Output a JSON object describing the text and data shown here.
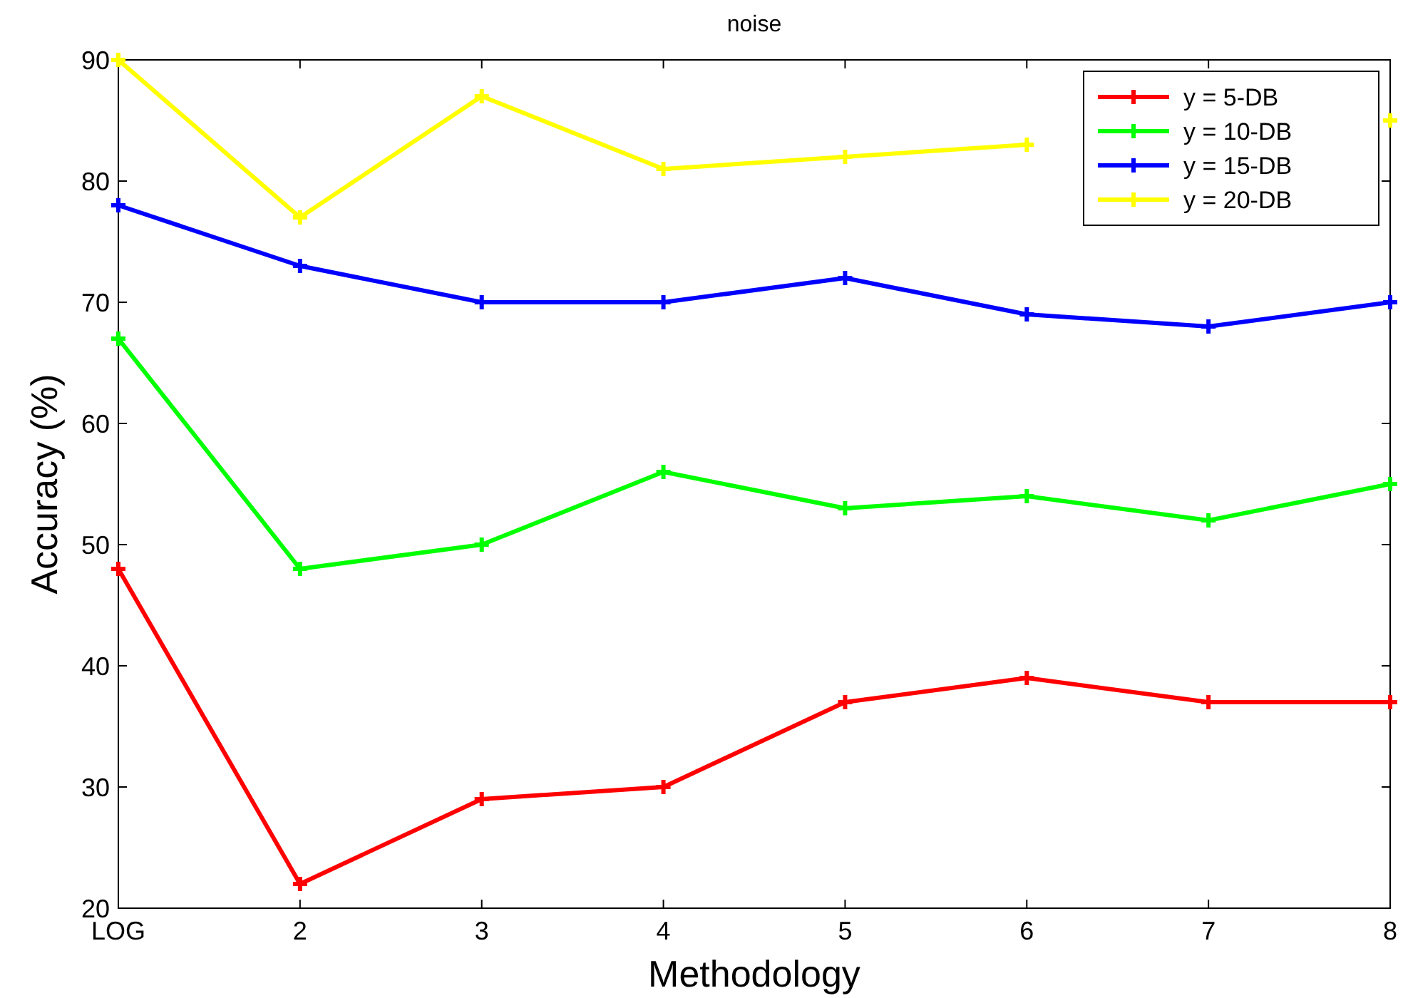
{
  "chart_data": {
    "type": "line",
    "title": "noise",
    "xlabel": "Methodology",
    "ylabel": "Accuracy (%)",
    "categories": [
      "LOG",
      "2",
      "3",
      "4",
      "5",
      "6",
      "7",
      "8"
    ],
    "series": [
      {
        "name": "y = 5-DB",
        "color": "#ff0000",
        "values": [
          48,
          22,
          29,
          30,
          37,
          39,
          37,
          37
        ]
      },
      {
        "name": "y = 10-DB",
        "color": "#00ff00",
        "values": [
          67,
          48,
          50,
          56,
          53,
          54,
          52,
          55
        ]
      },
      {
        "name": "y = 15-DB",
        "color": "#0000ff",
        "values": [
          78,
          73,
          70,
          70,
          72,
          69,
          68,
          70
        ]
      },
      {
        "name": "y = 20-DB",
        "color": "#ffff00",
        "values": [
          90,
          77,
          87,
          81,
          82,
          83,
          null,
          85
        ]
      }
    ],
    "ylim": [
      20,
      90
    ],
    "yticks": [
      20,
      30,
      40,
      50,
      60,
      70,
      80,
      90
    ],
    "legend": "top right",
    "marker": "cross",
    "line_style": "solid"
  }
}
